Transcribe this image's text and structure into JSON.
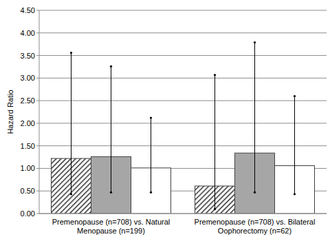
{
  "chart_data": {
    "type": "bar",
    "y_label": "Hazard Ratio",
    "categories": [
      "Premenopause (n=708) vs. Natural Menopause (n=199)",
      "Premenopause (n=708) vs. Bilateral Oophorectomy (n=62)"
    ],
    "series": [
      {
        "color": "#303030",
        "values": [
          1.22,
          0.61
        ],
        "ci_low": [
          0.43,
          0.1
        ],
        "ci_high": [
          3.56,
          3.07
        ]
      },
      {
        "color": "#a6a6a6",
        "values": [
          1.26,
          1.34
        ],
        "ci_low": [
          0.47,
          0.47
        ],
        "ci_high": [
          3.26,
          3.79
        ]
      },
      {
        "color": "#ffffff",
        "values": [
          1.01,
          1.06
        ],
        "ci_low": [
          0.47,
          0.43
        ],
        "ci_high": [
          2.12,
          2.6
        ]
      }
    ],
    "ylim": [
      0,
      4.5
    ],
    "yticks": [
      {
        "value": 0,
        "label": "0.00"
      },
      {
        "value": 0.5,
        "label": "0.50"
      },
      {
        "value": 1,
        "label": "1.00"
      },
      {
        "value": 1.5,
        "label": "1.50"
      },
      {
        "value": 2,
        "label": "2.00"
      },
      {
        "value": 2.5,
        "label": "2.50"
      },
      {
        "value": 3,
        "label": "3.00"
      },
      {
        "value": 3.5,
        "label": "3.50"
      },
      {
        "value": 4,
        "label": "4.00"
      },
      {
        "value": 4.5,
        "label": "4.50"
      }
    ],
    "grid": true
  }
}
